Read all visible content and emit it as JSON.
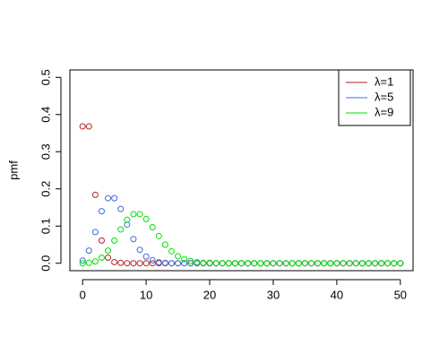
{
  "chart_data": {
    "type": "scatter",
    "y_label": "pmf",
    "x": [
      0,
      1,
      2,
      3,
      4,
      5,
      6,
      7,
      8,
      9,
      10,
      11,
      12,
      13,
      14,
      15,
      16,
      17,
      18,
      19,
      20,
      21,
      22,
      23,
      24,
      25,
      26,
      27,
      28,
      29,
      30,
      31,
      32,
      33,
      34,
      35,
      36,
      37,
      38,
      39,
      40,
      41,
      42,
      43,
      44,
      45,
      46,
      47,
      48,
      49,
      50
    ],
    "series": [
      {
        "name": "λ=1",
        "color": "#b22222",
        "values": [
          0.368,
          0.368,
          0.184,
          0.061,
          0.015,
          0.003,
          0.001,
          0,
          0,
          0,
          0,
          0,
          0,
          0,
          0,
          0,
          0,
          0,
          0,
          0,
          0,
          0,
          0,
          0,
          0,
          0,
          0,
          0,
          0,
          0,
          0,
          0,
          0,
          0,
          0,
          0,
          0,
          0,
          0,
          0,
          0,
          0,
          0,
          0,
          0,
          0,
          0,
          0,
          0,
          0,
          0
        ]
      },
      {
        "name": "λ=5",
        "color": "#3a6fd8",
        "values": [
          0.007,
          0.034,
          0.084,
          0.14,
          0.175,
          0.175,
          0.146,
          0.104,
          0.065,
          0.036,
          0.018,
          0.008,
          0.003,
          0.001,
          0,
          0,
          0,
          0,
          0,
          0,
          0,
          0,
          0,
          0,
          0,
          0,
          0,
          0,
          0,
          0,
          0,
          0,
          0,
          0,
          0,
          0,
          0,
          0,
          0,
          0,
          0,
          0,
          0,
          0,
          0,
          0,
          0,
          0,
          0,
          0,
          0
        ]
      },
      {
        "name": "λ=9",
        "color": "#00e000",
        "values": [
          0,
          0.001,
          0.005,
          0.015,
          0.034,
          0.061,
          0.091,
          0.117,
          0.132,
          0.132,
          0.119,
          0.097,
          0.073,
          0.05,
          0.032,
          0.019,
          0.011,
          0.006,
          0.003,
          0.001,
          0.001,
          0,
          0,
          0,
          0,
          0,
          0,
          0,
          0,
          0,
          0,
          0,
          0,
          0,
          0,
          0,
          0,
          0,
          0,
          0,
          0,
          0,
          0,
          0,
          0,
          0,
          0,
          0,
          0,
          0,
          0
        ]
      }
    ],
    "xlim": [
      -2,
      52
    ],
    "xticks": [
      0,
      10,
      20,
      30,
      40,
      50
    ],
    "ylim": [
      -0.02,
      0.52
    ],
    "yticks": [
      {
        "value": 0,
        "label": "0.0"
      },
      {
        "value": 0.1,
        "label": "0.1"
      },
      {
        "value": 0.2,
        "label": "0.2"
      },
      {
        "value": 0.3,
        "label": "0.3"
      },
      {
        "value": 0.4,
        "label": "0.4"
      },
      {
        "value": 0.5,
        "label": "0.5"
      }
    ],
    "legend": "topright",
    "grid": false
  }
}
